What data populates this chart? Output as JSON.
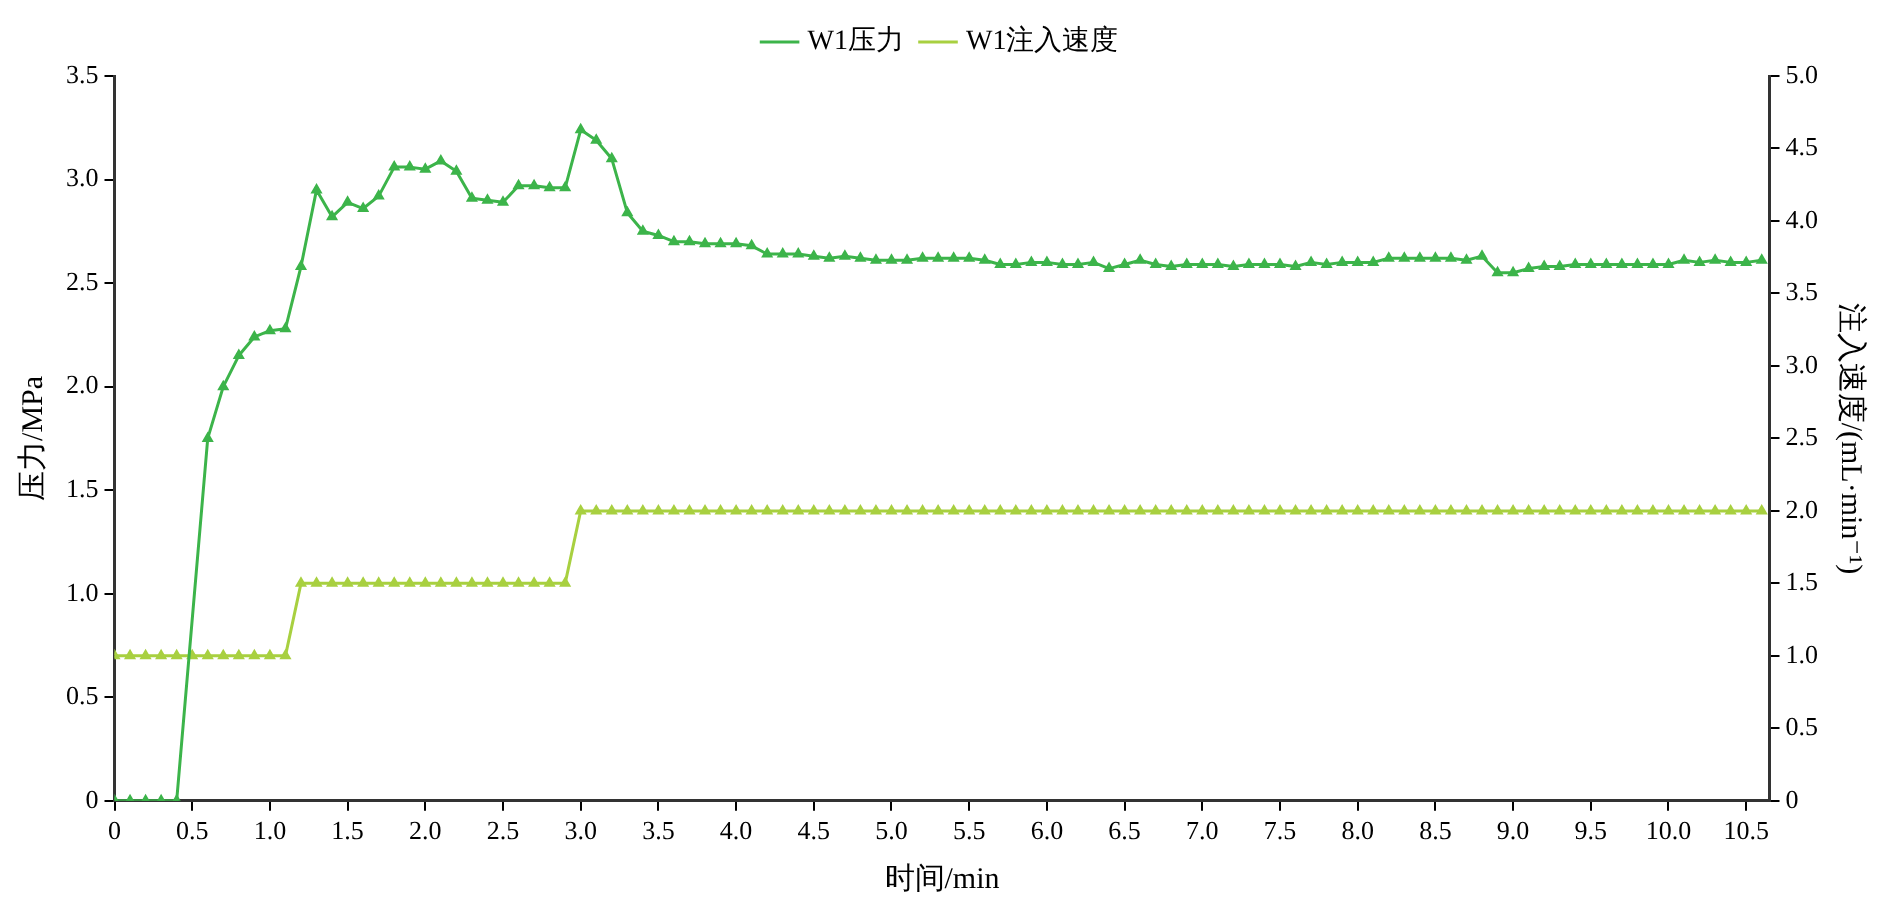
{
  "chart_data": {
    "type": "line",
    "xlabel": "时间/min",
    "ylabel": "压力/MPa",
    "y2label": "注入速度/(mL·min⁻¹)",
    "xlim": [
      0,
      10.65
    ],
    "xticks": [
      0,
      {
        "value": 0.5,
        "label": "0.5"
      },
      {
        "value": 1,
        "label": "1.0"
      },
      {
        "value": 1.5,
        "label": "1.5"
      },
      {
        "value": 2,
        "label": "2.0"
      },
      {
        "value": 2.5,
        "label": "2.5"
      },
      {
        "value": 3,
        "label": "3.0"
      },
      {
        "value": 3.5,
        "label": "3.5"
      },
      {
        "value": 4,
        "label": "4.0"
      },
      {
        "value": 4.5,
        "label": "4.5"
      },
      {
        "value": 5,
        "label": "5.0"
      },
      {
        "value": 5.5,
        "label": "5.5"
      },
      {
        "value": 6,
        "label": "6.0"
      },
      {
        "value": 6.5,
        "label": "6.5"
      },
      {
        "value": 7,
        "label": "7.0"
      },
      {
        "value": 7.5,
        "label": "7.5"
      },
      {
        "value": 8,
        "label": "8.0"
      },
      {
        "value": 8.5,
        "label": "8.5"
      },
      {
        "value": 9,
        "label": "9.0"
      },
      {
        "value": 9.5,
        "label": "9.5"
      },
      {
        "value": 10,
        "label": "10.0"
      },
      {
        "value": 10.5,
        "label": "10.5"
      }
    ],
    "ylim": [
      0,
      3.5
    ],
    "yticks": [
      0,
      0.5,
      {
        "value": 1,
        "label": "1.0"
      },
      1.5,
      {
        "value": 2,
        "label": "2.0"
      },
      2.5,
      {
        "value": 3,
        "label": "3.0"
      },
      3.5
    ],
    "y2lim": [
      0,
      5
    ],
    "y2ticks": [
      0,
      0.5,
      {
        "value": 1,
        "label": "1.0"
      },
      1.5,
      {
        "value": 2,
        "label": "2.0"
      },
      2.5,
      {
        "value": 3,
        "label": "3.0"
      },
      3.5,
      {
        "value": 4,
        "label": "4.0"
      },
      4.5,
      {
        "value": 5,
        "label": "5.0"
      }
    ],
    "grid": false,
    "legend": "top",
    "marker": "triangle",
    "line_style": "solid",
    "series": [
      {
        "name": "W1压力",
        "color": "#3cb44a",
        "x": [
          0,
          0.1,
          0.2,
          0.3,
          0.4,
          0.6,
          0.7,
          0.8,
          0.9,
          1.0,
          1.1,
          1.2,
          1.3,
          1.4,
          1.5,
          1.6,
          1.7,
          1.8,
          1.9,
          2.0,
          2.1,
          2.2,
          2.3,
          2.4,
          2.5,
          2.6,
          2.7,
          2.8,
          2.9,
          3.0,
          3.1,
          3.2,
          3.3,
          3.4,
          3.5,
          3.6,
          3.7,
          3.8,
          3.9,
          4.0,
          4.1,
          4.2,
          4.3,
          4.4,
          4.5,
          4.6,
          4.7,
          4.8,
          4.9,
          5.0,
          5.1,
          5.2,
          5.3,
          5.4,
          5.5,
          5.6,
          5.7,
          5.8,
          5.9,
          6.0,
          6.1,
          6.2,
          6.3,
          6.4,
          6.5,
          6.6,
          6.7,
          6.8,
          6.9,
          7.0,
          7.1,
          7.2,
          7.3,
          7.4,
          7.5,
          7.6,
          7.7,
          7.8,
          7.9,
          8.0,
          8.1,
          8.2,
          8.3,
          8.4,
          8.5,
          8.6,
          8.7,
          8.8,
          8.9,
          9.0,
          9.1,
          9.2,
          9.3,
          9.4,
          9.5,
          9.6,
          9.7,
          9.8,
          9.9,
          10.0,
          10.1,
          10.2,
          10.3,
          10.4,
          10.5,
          10.6
        ],
        "values": [
          0,
          0,
          0,
          0,
          0,
          1.75,
          2.0,
          2.15,
          2.24,
          2.27,
          2.28,
          2.58,
          2.95,
          2.82,
          2.89,
          2.86,
          2.92,
          3.06,
          3.06,
          3.05,
          3.09,
          3.04,
          2.91,
          2.9,
          2.89,
          2.97,
          2.97,
          2.96,
          2.96,
          3.24,
          3.19,
          3.1,
          2.84,
          2.75,
          2.73,
          2.7,
          2.7,
          2.69,
          2.69,
          2.69,
          2.68,
          2.64,
          2.64,
          2.64,
          2.63,
          2.62,
          2.63,
          2.62,
          2.61,
          2.61,
          2.61,
          2.62,
          2.62,
          2.62,
          2.62,
          2.61,
          2.59,
          2.59,
          2.6,
          2.6,
          2.59,
          2.59,
          2.6,
          2.57,
          2.59,
          2.61,
          2.59,
          2.58,
          2.59,
          2.59,
          2.59,
          2.58,
          2.59,
          2.59,
          2.59,
          2.58,
          2.6,
          2.59,
          2.6,
          2.6,
          2.6,
          2.62,
          2.62,
          2.62,
          2.62,
          2.62,
          2.61,
          2.63,
          2.55,
          2.55,
          2.57,
          2.58,
          2.58,
          2.59,
          2.59,
          2.59,
          2.59,
          2.59,
          2.59,
          2.59,
          2.61,
          2.6,
          2.61,
          2.6,
          2.6,
          2.61
        ]
      },
      {
        "name": "W1注入速度",
        "color": "#a8d040",
        "axis": "y2",
        "x": [
          0,
          0.1,
          0.2,
          0.3,
          0.4,
          0.5,
          0.6,
          0.7,
          0.8,
          0.9,
          1.0,
          1.1,
          1.2,
          1.3,
          1.4,
          1.5,
          1.6,
          1.7,
          1.8,
          1.9,
          2.0,
          2.1,
          2.2,
          2.3,
          2.4,
          2.5,
          2.6,
          2.7,
          2.8,
          2.9,
          3.0,
          3.1,
          3.2,
          3.3,
          3.4,
          3.5,
          3.6,
          3.7,
          3.8,
          3.9,
          4.0,
          4.1,
          4.2,
          4.3,
          4.4,
          4.5,
          4.6,
          4.7,
          4.8,
          4.9,
          5.0,
          5.1,
          5.2,
          5.3,
          5.4,
          5.5,
          5.6,
          5.7,
          5.8,
          5.9,
          6.0,
          6.1,
          6.2,
          6.3,
          6.4,
          6.5,
          6.6,
          6.7,
          6.8,
          6.9,
          7.0,
          7.1,
          7.2,
          7.3,
          7.4,
          7.5,
          7.6,
          7.7,
          7.8,
          7.9,
          8.0,
          8.1,
          8.2,
          8.3,
          8.4,
          8.5,
          8.6,
          8.7,
          8.8,
          8.9,
          9.0,
          9.1,
          9.2,
          9.3,
          9.4,
          9.5,
          9.6,
          9.7,
          9.8,
          9.9,
          10.0,
          10.1,
          10.2,
          10.3,
          10.4,
          10.5,
          10.6
        ],
        "values": [
          1,
          1,
          1,
          1,
          1,
          1,
          1,
          1,
          1,
          1,
          1,
          1,
          1.5,
          1.5,
          1.5,
          1.5,
          1.5,
          1.5,
          1.5,
          1.5,
          1.5,
          1.5,
          1.5,
          1.5,
          1.5,
          1.5,
          1.5,
          1.5,
          1.5,
          1.5,
          2,
          2,
          2,
          2,
          2,
          2,
          2,
          2,
          2,
          2,
          2,
          2,
          2,
          2,
          2,
          2,
          2,
          2,
          2,
          2,
          2,
          2,
          2,
          2,
          2,
          2,
          2,
          2,
          2,
          2,
          2,
          2,
          2,
          2,
          2,
          2,
          2,
          2,
          2,
          2,
          2,
          2,
          2,
          2,
          2,
          2,
          2,
          2,
          2,
          2,
          2,
          2,
          2,
          2,
          2,
          2,
          2,
          2,
          2,
          2,
          2,
          2,
          2,
          2,
          2,
          2,
          2,
          2,
          2,
          2,
          2,
          2,
          2,
          2,
          2,
          2,
          2
        ]
      }
    ]
  }
}
